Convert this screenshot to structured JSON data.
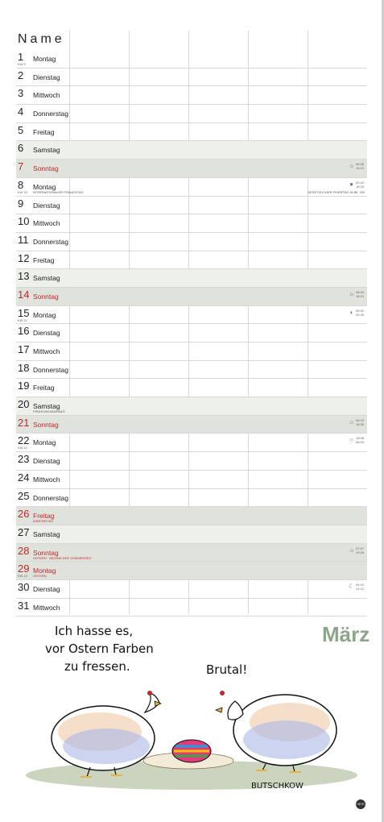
{
  "header": {
    "name_label": "Name"
  },
  "month": "März",
  "days": [
    {
      "num": "1",
      "day": "Montag",
      "kw": "KW 9"
    },
    {
      "num": "2",
      "day": "Dienstag"
    },
    {
      "num": "3",
      "day": "Mittwoch"
    },
    {
      "num": "4",
      "day": "Donnerstag"
    },
    {
      "num": "5",
      "day": "Freitag"
    },
    {
      "num": "6",
      "day": "Samstag",
      "type": "sat"
    },
    {
      "num": "7",
      "day": "Sonntag",
      "type": "sun",
      "red": true,
      "astro": [
        "06:55",
        "18:12"
      ],
      "icon": "☼"
    },
    {
      "num": "8",
      "day": "Montag",
      "kw": "KW 10",
      "note": "INTERNATIONALER FRAUENTAG",
      "astro": [
        "00:42",
        "18:29"
      ],
      "icon": "●",
      "side_note": "GESETZLICHER FEIERTAG IN BE, MV"
    },
    {
      "num": "9",
      "day": "Dienstag"
    },
    {
      "num": "10",
      "day": "Mittwoch"
    },
    {
      "num": "11",
      "day": "Donnerstag"
    },
    {
      "num": "12",
      "day": "Freitag"
    },
    {
      "num": "13",
      "day": "Samstag",
      "type": "sat"
    },
    {
      "num": "14",
      "day": "Sonntag",
      "type": "sun",
      "red": true,
      "astro": [
        "06:39",
        "18:24"
      ],
      "icon": "☼"
    },
    {
      "num": "15",
      "day": "Montag",
      "kw": "KW 11",
      "astro": [
        "05:31",
        "02:30"
      ],
      "icon": "◗"
    },
    {
      "num": "16",
      "day": "Dienstag"
    },
    {
      "num": "17",
      "day": "Mittwoch"
    },
    {
      "num": "18",
      "day": "Donnerstag"
    },
    {
      "num": "19",
      "day": "Freitag"
    },
    {
      "num": "20",
      "day": "Samstag",
      "type": "sat",
      "note": "FRÜHLINGSANFANG"
    },
    {
      "num": "21",
      "day": "Sonntag",
      "type": "sun",
      "red": true,
      "astro": [
        "06:23",
        "18:36"
      ],
      "icon": "☼"
    },
    {
      "num": "22",
      "day": "Montag",
      "kw": "KW 12",
      "astro": [
        "18:08",
        "06:00"
      ],
      "icon": "○"
    },
    {
      "num": "23",
      "day": "Dienstag"
    },
    {
      "num": "24",
      "day": "Mittwoch"
    },
    {
      "num": "25",
      "day": "Donnerstag"
    },
    {
      "num": "26",
      "day": "Freitag",
      "type": "hol",
      "red": true,
      "note": "KARFREITAG"
    },
    {
      "num": "27",
      "day": "Samstag",
      "type": "sat"
    },
    {
      "num": "28",
      "day": "Sonntag",
      "type": "sun",
      "red": true,
      "note": "OSTERN · BEGINN DER SOMMERZEIT",
      "astro": [
        "07:07",
        "19:48"
      ],
      "icon": "☼"
    },
    {
      "num": "29",
      "day": "Montag",
      "kw": "KW 13",
      "type": "hol",
      "red": true,
      "note": "OSTERN"
    },
    {
      "num": "30",
      "day": "Dienstag",
      "astro": [
        "04:10",
        "11:22"
      ],
      "icon": "☾"
    },
    {
      "num": "31",
      "day": "Mittwoch"
    }
  ],
  "cartoon": {
    "caption_line1": "Ich hasse es,",
    "caption_line2": "vor Ostern Farben",
    "caption_line3": "zu fressen.",
    "reply": "Brutal!",
    "signature": "BUTSCHKOW"
  },
  "publisher_logo": "HEYE"
}
